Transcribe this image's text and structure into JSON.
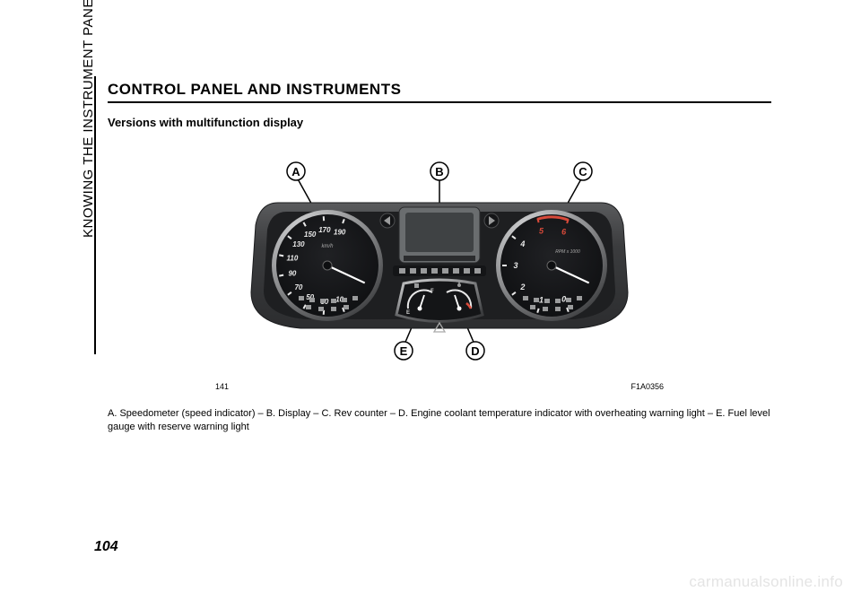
{
  "side_label": "KNOWING THE INSTRUMENT PANEL",
  "heading": "CONTROL PANEL AND INSTRUMENTS",
  "subheading": "Versions with multifunction display",
  "page_number": "104",
  "watermark": "carmanualsonline.info",
  "figure": {
    "fig_num": "141",
    "fig_code": "F1A0356",
    "callouts": [
      "A",
      "B",
      "C",
      "D",
      "E"
    ],
    "speedo": {
      "ticks": [
        "10",
        "30",
        "50",
        "70",
        "90",
        "110",
        "130",
        "150",
        "170",
        "190"
      ],
      "unit": "km/h"
    },
    "tacho": {
      "ticks": [
        "0",
        "1",
        "2",
        "3",
        "4",
        "5",
        "6"
      ],
      "unit": "RPM x 1000"
    },
    "colors": {
      "body": "#3b3c3e",
      "body_light": "#5a5b5d",
      "dial_face": "#141517",
      "dial_rim_outer": "#b8b9ba",
      "dial_rim_inner": "#2b2c2e",
      "tick": "#e8e8e8",
      "needle": "#ffffff",
      "redzone": "#d84a3a",
      "display_bg": "#6a6d6f",
      "display_screen": "#3f4244",
      "icon": "#9a9b9c",
      "callout_fill": "#ffffff",
      "callout_stroke": "#000000",
      "interior_shadow": "#1e1f21"
    }
  },
  "description": "A. Speedometer (speed indicator) – B. Display – C. Rev counter – D. Engine coolant temperature indicator with overheating warning light – E. Fuel level gauge with reserve warning light"
}
